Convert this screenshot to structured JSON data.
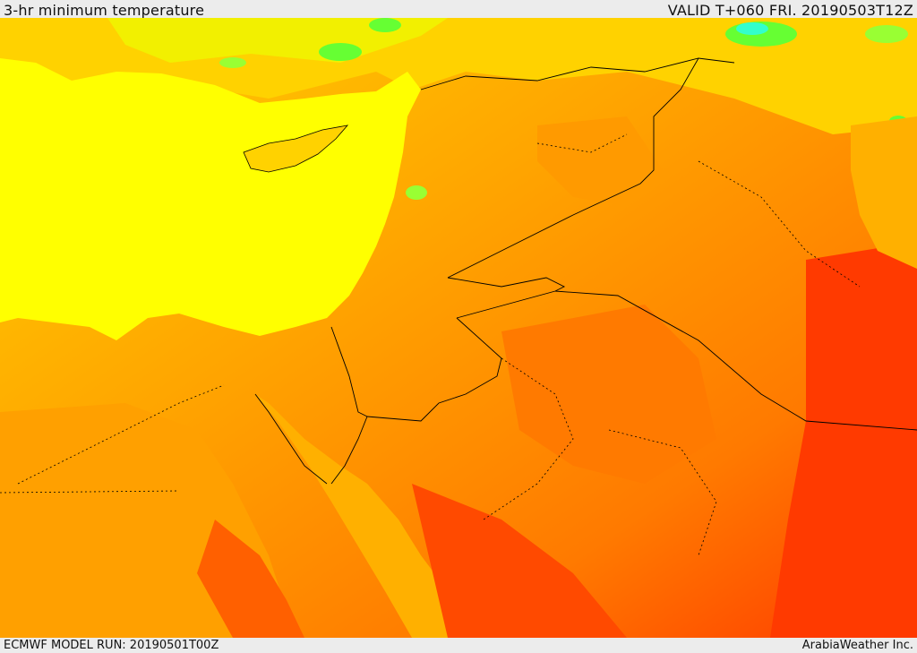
{
  "header": {
    "title": "3-hr minimum temperature",
    "valid": "VALID T+060 FRI. 20190503T12Z"
  },
  "footer": {
    "model_run": "ECMWF MODEL RUN: 20190501T00Z",
    "brand": "ArabiaWeather Inc."
  },
  "colors": {
    "sea": "#ffff00",
    "yellow_orange": "#ffd200",
    "orange_light": "#ffa500",
    "orange": "#ff8c00",
    "orange_red": "#ff6a00",
    "red": "#ff3300",
    "green": "#66ff33",
    "cyan": "#33ffcc"
  }
}
